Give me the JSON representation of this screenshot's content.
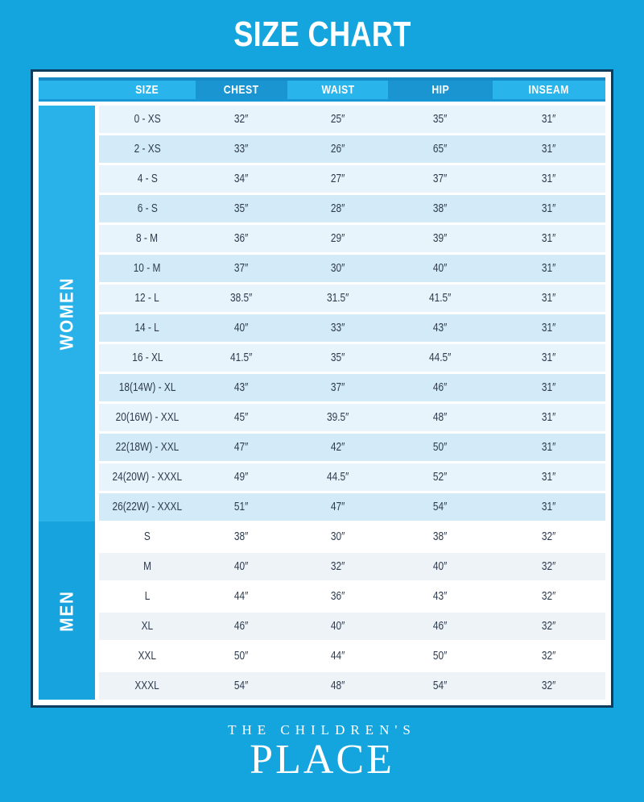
{
  "title": "SIZE CHART",
  "brand": {
    "line1": "THE CHILDREN'S",
    "line2": "PLACE"
  },
  "colors": {
    "background": "#14a5df",
    "header_light": "#29b4eb",
    "header_dark": "#1b95d1",
    "sidebar_women": "#29b2ea",
    "sidebar_men": "#17a3de",
    "row_women_light": "#e7f4fb",
    "row_women_dark": "#d3ebf8",
    "row_men_light": "#ffffff",
    "row_men_dark": "#eef3f8",
    "text_dark": "#2e3b4e",
    "frame_border": "#0e3c5c",
    "white": "#ffffff"
  },
  "chart_data": {
    "type": "table",
    "title": "SIZE CHART",
    "columns": [
      "SIZE",
      "CHEST",
      "WAIST",
      "HIP",
      "INSEAM"
    ],
    "row_groups": [
      {
        "group": "WOMEN",
        "rows": [
          [
            "0 - XS",
            "32″",
            "25″",
            "35″",
            "31″"
          ],
          [
            "2 - XS",
            "33″",
            "26″",
            "65″",
            "31″"
          ],
          [
            "4 - S",
            "34″",
            "27″",
            "37″",
            "31″"
          ],
          [
            "6 - S",
            "35″",
            "28″",
            "38″",
            "31″"
          ],
          [
            "8 - M",
            "36″",
            "29″",
            "39″",
            "31″"
          ],
          [
            "10 - M",
            "37″",
            "30″",
            "40″",
            "31″"
          ],
          [
            "12 - L",
            "38.5″",
            "31.5″",
            "41.5″",
            "31″"
          ],
          [
            "14 - L",
            "40″",
            "33″",
            "43″",
            "31″"
          ],
          [
            "16 - XL",
            "41.5″",
            "35″",
            "44.5″",
            "31″"
          ],
          [
            "18(14W) - XL",
            "43″",
            "37″",
            "46″",
            "31″"
          ],
          [
            "20(16W) - XXL",
            "45″",
            "39.5″",
            "48″",
            "31″"
          ],
          [
            "22(18W) - XXL",
            "47″",
            "42″",
            "50″",
            "31″"
          ],
          [
            "24(20W) - XXXL",
            "49″",
            "44.5″",
            "52″",
            "31″"
          ],
          [
            "26(22W) - XXXL",
            "51″",
            "47″",
            "54″",
            "31″"
          ]
        ]
      },
      {
        "group": "MEN",
        "rows": [
          [
            "S",
            "38″",
            "30″",
            "38″",
            "32″"
          ],
          [
            "M",
            "40″",
            "32″",
            "40″",
            "32″"
          ],
          [
            "L",
            "44″",
            "36″",
            "43″",
            "32″"
          ],
          [
            "XL",
            "46″",
            "40″",
            "46″",
            "32″"
          ],
          [
            "XXL",
            "50″",
            "44″",
            "50″",
            "32″"
          ],
          [
            "XXXL",
            "54″",
            "48″",
            "54″",
            "32″"
          ]
        ]
      }
    ]
  }
}
